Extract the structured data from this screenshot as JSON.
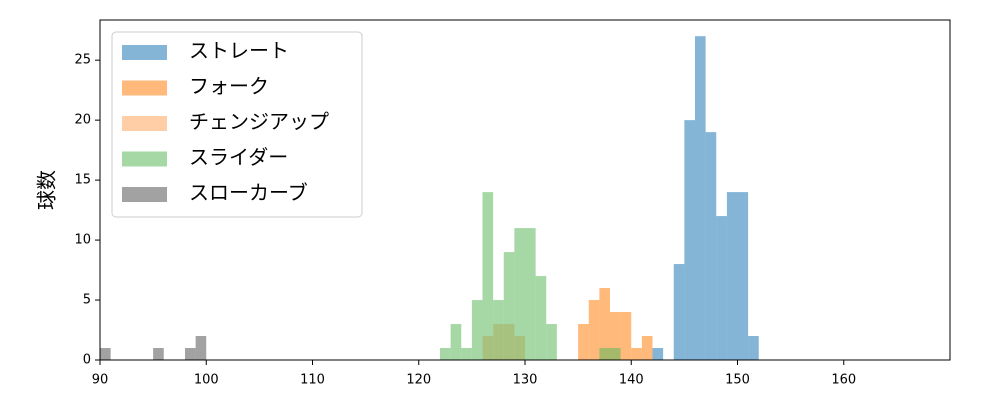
{
  "chart_data": {
    "type": "histogram",
    "ylabel": "球数",
    "xlim": [
      90,
      170
    ],
    "xticks": [
      90,
      100,
      110,
      120,
      130,
      140,
      150,
      160
    ],
    "ylim": [
      0,
      28.35
    ],
    "yticks": [
      0,
      5,
      10,
      15,
      20,
      25
    ],
    "legend": "upper left",
    "opacity": 0.55,
    "series": [
      {
        "name": "ストレート",
        "color": "#1f77b4",
        "bins": [
          142,
          143,
          144,
          145,
          146,
          147,
          148,
          149,
          150,
          151,
          152
        ],
        "values": [
          1,
          0,
          8,
          20,
          27,
          19,
          12,
          14,
          14,
          2
        ]
      },
      {
        "name": "フォーク",
        "color": "#ff7f0e",
        "bins": [
          135,
          136,
          137,
          138,
          139,
          140,
          141,
          142
        ],
        "values": [
          3,
          5,
          6,
          4,
          4,
          1,
          2
        ]
      },
      {
        "name": "チェンジアップ",
        "color": "#ffa55c",
        "bins": [
          126,
          127,
          128,
          129,
          130
        ],
        "values": [
          2,
          3,
          3,
          2
        ]
      },
      {
        "name": "スライダー",
        "color": "#5cb85c",
        "bins": [
          122,
          123,
          124,
          125,
          126,
          127,
          128,
          129,
          130,
          131,
          132,
          133,
          134,
          135,
          136,
          137,
          138,
          139
        ],
        "values": [
          1,
          3,
          1,
          5,
          14,
          5,
          9,
          11,
          11,
          7,
          3,
          0,
          0,
          0,
          0,
          1,
          1
        ]
      },
      {
        "name": "スローカーブ",
        "color": "#555555",
        "bins": [
          90,
          91,
          92,
          93,
          94,
          95,
          96,
          97,
          98,
          99,
          100
        ],
        "values": [
          1,
          0,
          0,
          0,
          0,
          1,
          0,
          0,
          1,
          2
        ]
      }
    ]
  }
}
